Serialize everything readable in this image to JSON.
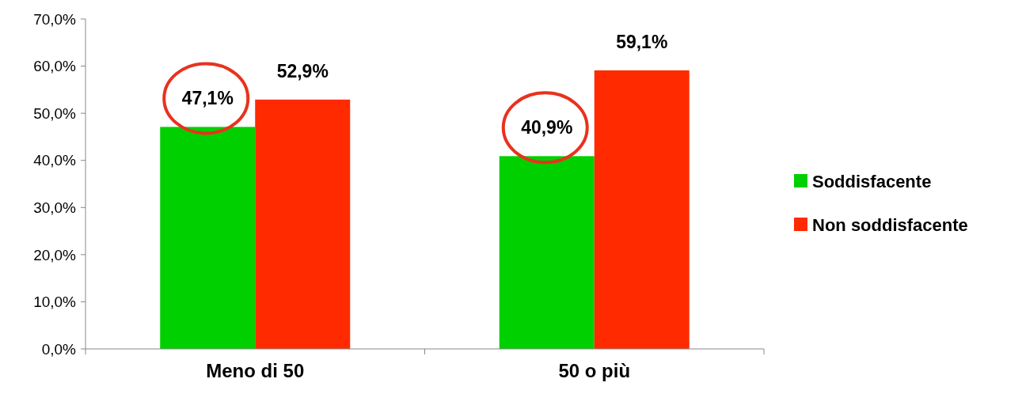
{
  "chart_data": {
    "type": "bar",
    "categories": [
      "Meno di 50",
      "50 o più"
    ],
    "series": [
      {
        "name": "Soddisfacente",
        "color": "#00d000",
        "values": [
          47.1,
          40.9
        ],
        "value_labels": [
          "47,1%",
          "40,9%"
        ]
      },
      {
        "name": "Non soddisfacente",
        "color": "#ff2a00",
        "values": [
          52.9,
          59.1
        ],
        "value_labels": [
          "52,9%",
          "59,1%"
        ]
      }
    ],
    "ylim": [
      0,
      70
    ],
    "yticks": [
      {
        "value": 0,
        "label": "0,0%"
      },
      {
        "value": 10,
        "label": "10,0%"
      },
      {
        "value": 20,
        "label": "20,0%"
      },
      {
        "value": 30,
        "label": "30,0%"
      },
      {
        "value": 40,
        "label": "40,0%"
      },
      {
        "value": 50,
        "label": "50,0%"
      },
      {
        "value": 60,
        "label": "60,0%"
      },
      {
        "value": 70,
        "label": "70,0%"
      }
    ],
    "grid": false,
    "legend": "right"
  }
}
